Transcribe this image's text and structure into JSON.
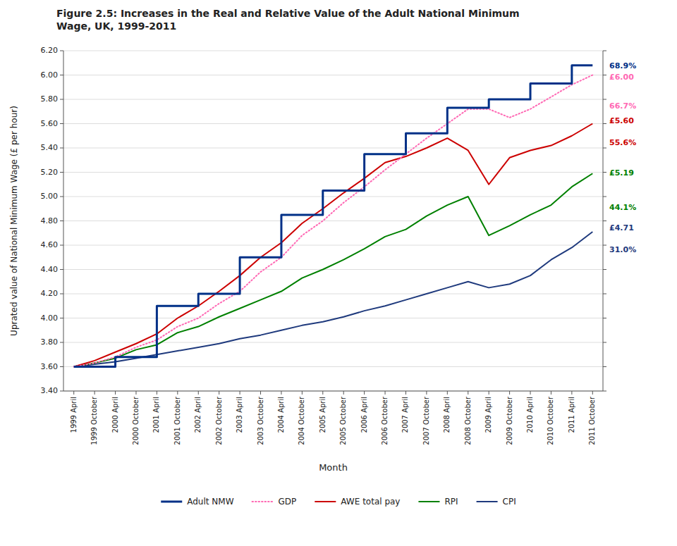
{
  "chart_data": {
    "type": "line",
    "title": "Figure 2.5: Increases in the Real and Relative Value of the Adult National Minimum\nWage, UK, 1999-2011",
    "x_label": "Month",
    "y_label": "Uprated value of National Minimum Wage (£ per hour)",
    "categories": [
      "1999 April",
      "1999 October",
      "2000 April",
      "2000 October",
      "2001 April",
      "2001 October",
      "2002 April",
      "2002 October",
      "2003 April",
      "2003 October",
      "2004 April",
      "2004 October",
      "2005 April",
      "2005 October",
      "2006 April",
      "2006 October",
      "2007 April",
      "2007 October",
      "2008 April",
      "2008 October",
      "2009 April",
      "2009 October",
      "2010 April",
      "2010 October",
      "2011 April",
      "2011 October"
    ],
    "series": [
      {
        "name": "Adult NMW",
        "type": "step",
        "line_style": "solid",
        "color": "#003087",
        "values": [
          3.6,
          3.6,
          3.68,
          3.68,
          4.1,
          4.1,
          4.2,
          4.2,
          4.5,
          4.5,
          4.85,
          4.85,
          5.05,
          5.05,
          5.35,
          5.35,
          5.52,
          5.52,
          5.73,
          5.73,
          5.8,
          5.8,
          5.93,
          5.93,
          6.08,
          6.08
        ]
      },
      {
        "name": "GDP",
        "type": "line",
        "line_style": "dotted",
        "color": "#FF69B4",
        "values": [
          3.6,
          3.63,
          3.68,
          3.76,
          3.82,
          3.93,
          4.0,
          4.12,
          4.22,
          4.38,
          4.5,
          4.68,
          4.8,
          4.95,
          5.08,
          5.22,
          5.35,
          5.48,
          5.6,
          5.72,
          5.72,
          5.65,
          5.72,
          5.82,
          5.92,
          6.0
        ]
      },
      {
        "name": "AWE total pay",
        "type": "line",
        "line_style": "solid",
        "color": "#CC0000",
        "values": [
          3.6,
          3.65,
          3.72,
          3.79,
          3.87,
          4.0,
          4.1,
          4.22,
          4.35,
          4.5,
          4.62,
          4.78,
          4.9,
          5.03,
          5.15,
          5.28,
          5.33,
          5.4,
          5.48,
          5.38,
          5.1,
          5.32,
          5.38,
          5.42,
          5.5,
          5.6
        ]
      },
      {
        "name": "RPI",
        "type": "line",
        "line_style": "solid",
        "color": "#008000",
        "values": [
          3.6,
          3.63,
          3.67,
          3.74,
          3.78,
          3.88,
          3.93,
          4.01,
          4.08,
          4.15,
          4.22,
          4.33,
          4.4,
          4.48,
          4.57,
          4.67,
          4.73,
          4.84,
          4.93,
          5.0,
          4.68,
          4.76,
          4.85,
          4.93,
          5.08,
          5.19
        ]
      },
      {
        "name": "CPI",
        "type": "line",
        "line_style": "solid",
        "color": "#1F3A7D",
        "values": [
          3.6,
          3.62,
          3.64,
          3.67,
          3.7,
          3.73,
          3.76,
          3.79,
          3.83,
          3.86,
          3.9,
          3.94,
          3.97,
          4.01,
          4.06,
          4.1,
          4.15,
          4.2,
          4.25,
          4.3,
          4.25,
          4.28,
          4.35,
          4.48,
          4.58,
          4.71
        ]
      }
    ],
    "ylim": [
      3.4,
      6.2
    ],
    "yticks": [
      {
        "value": 3.4,
        "label": "3.40"
      },
      {
        "value": 3.6,
        "label": "3.60"
      },
      {
        "value": 3.8,
        "label": "3.80"
      },
      {
        "value": 4.0,
        "label": "4.00"
      },
      {
        "value": 4.2,
        "label": "4.20"
      },
      {
        "value": 4.4,
        "label": "4.40"
      },
      {
        "value": 4.6,
        "label": "4.60"
      },
      {
        "value": 4.8,
        "label": "4.80"
      },
      {
        "value": 5.0,
        "label": "5.00"
      },
      {
        "value": 5.2,
        "label": "5.20"
      },
      {
        "value": 5.4,
        "label": "5.40"
      },
      {
        "value": 5.6,
        "label": "5.60"
      },
      {
        "value": 5.8,
        "label": "5.80"
      },
      {
        "value": 6.0,
        "label": "6.00"
      },
      {
        "value": 6.2,
        "label": "6.20"
      }
    ],
    "annotations": [
      {
        "text": "68.9%",
        "y": 6.07,
        "color": "#003087"
      },
      {
        "text": "£6.00",
        "y": 5.98,
        "color": "#FF69B4"
      },
      {
        "text": "66.7%",
        "y": 5.74,
        "color": "#FF69B4"
      },
      {
        "text": "£5.60",
        "y": 5.62,
        "color": "#CC0000"
      },
      {
        "text": "55.6%",
        "y": 5.44,
        "color": "#CC0000"
      },
      {
        "text": "£5.19",
        "y": 5.19,
        "color": "#008000"
      },
      {
        "text": "44.1%",
        "y": 4.91,
        "color": "#008000"
      },
      {
        "text": "£4.71",
        "y": 4.74,
        "color": "#1F3A7D"
      },
      {
        "text": "31.0%",
        "y": 4.56,
        "color": "#1F3A7D"
      }
    ],
    "grid": true,
    "legend": "bottom"
  }
}
